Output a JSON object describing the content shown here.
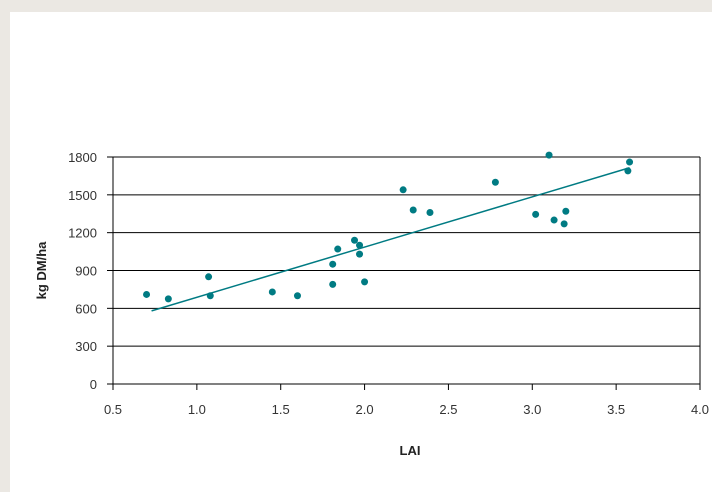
{
  "chart_data": {
    "type": "scatter",
    "title": "",
    "xlabel": "LAI",
    "ylabel": "kg DM/ha",
    "xlim": [
      0.5,
      4.0
    ],
    "ylim": [
      0,
      1800
    ],
    "xticks": [
      "0.5",
      "1.0",
      "1.5",
      "2.0",
      "2.5",
      "3.0",
      "3.5",
      "4.0"
    ],
    "yticks": [
      "0",
      "300",
      "600",
      "900",
      "1200",
      "1500",
      "1800"
    ],
    "grid": "horizontal",
    "legend": "none",
    "series": [
      {
        "color": "#007b83",
        "points": [
          {
            "x": 0.7,
            "y": 710
          },
          {
            "x": 0.83,
            "y": 675
          },
          {
            "x": 1.07,
            "y": 850
          },
          {
            "x": 1.08,
            "y": 700
          },
          {
            "x": 1.45,
            "y": 730
          },
          {
            "x": 1.6,
            "y": 700
          },
          {
            "x": 1.81,
            "y": 790
          },
          {
            "x": 1.81,
            "y": 950
          },
          {
            "x": 1.84,
            "y": 1070
          },
          {
            "x": 1.94,
            "y": 1140
          },
          {
            "x": 1.97,
            "y": 1030
          },
          {
            "x": 1.97,
            "y": 1100
          },
          {
            "x": 2.0,
            "y": 810
          },
          {
            "x": 2.23,
            "y": 1540
          },
          {
            "x": 2.29,
            "y": 1380
          },
          {
            "x": 2.39,
            "y": 1360
          },
          {
            "x": 2.78,
            "y": 1600
          },
          {
            "x": 3.02,
            "y": 1345
          },
          {
            "x": 3.1,
            "y": 1815
          },
          {
            "x": 3.13,
            "y": 1300
          },
          {
            "x": 3.19,
            "y": 1270
          },
          {
            "x": 3.2,
            "y": 1370
          },
          {
            "x": 3.57,
            "y": 1690
          },
          {
            "x": 3.58,
            "y": 1760
          }
        ]
      }
    ],
    "trendline": {
      "type": "linear",
      "x": [
        0.73,
        3.58
      ],
      "y": [
        580,
        1715
      ],
      "color": "#007b83"
    }
  }
}
